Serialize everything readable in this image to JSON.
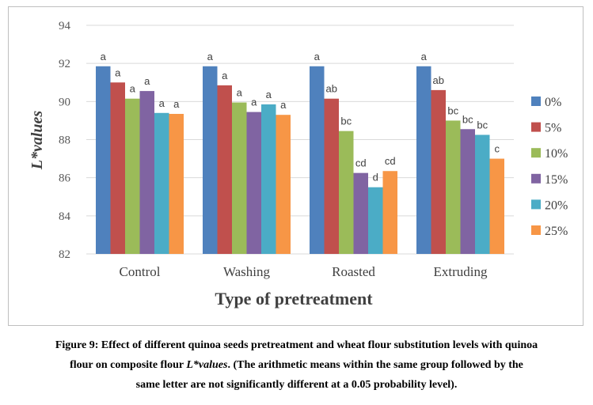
{
  "chart_data": {
    "type": "bar",
    "categories": [
      "Control",
      "Washing",
      "Roasted",
      "Extruding"
    ],
    "series": [
      {
        "name": "0%",
        "color": "#4F81BD",
        "values": [
          91.85,
          91.85,
          91.85,
          91.85
        ],
        "labels": [
          "a",
          "a",
          "a",
          "a"
        ]
      },
      {
        "name": "5%",
        "color": "#C0504D",
        "values": [
          91.0,
          90.85,
          90.15,
          90.6
        ],
        "labels": [
          "a",
          "a",
          "ab",
          "ab"
        ]
      },
      {
        "name": "10%",
        "color": "#9BBB59",
        "values": [
          90.15,
          89.95,
          88.45,
          89.0
        ],
        "labels": [
          "a",
          "a",
          "bc",
          "bc"
        ]
      },
      {
        "name": "15%",
        "color": "#8064A2",
        "values": [
          90.55,
          89.45,
          86.25,
          88.55
        ],
        "labels": [
          "a",
          "a",
          "cd",
          "bc"
        ]
      },
      {
        "name": "20%",
        "color": "#4BACC6",
        "values": [
          89.4,
          89.85,
          85.5,
          88.25
        ],
        "labels": [
          "a",
          "a",
          "d",
          "bc"
        ]
      },
      {
        "name": "25%",
        "color": "#F79646",
        "values": [
          89.35,
          89.3,
          86.35,
          87.0
        ],
        "labels": [
          "a",
          "a",
          "cd",
          "c"
        ]
      }
    ],
    "xlabel": "Type of pretreatment",
    "ylabel": "L*values",
    "ylim": [
      82,
      94
    ],
    "yticks": [
      82,
      84,
      86,
      88,
      90,
      92,
      94
    ],
    "grid": true,
    "legend": "right"
  },
  "caption": {
    "line1": "Figure 9: Effect of different quinoa seeds pretreatment and wheat flour substitution levels with quinoa",
    "line2_pre": "flour on composite flour ",
    "line2_it": "L*values",
    "line2_post": ". (The arithmetic means within the same group followed by the",
    "line3": "same letter are not significantly different at a 0.05 probability level)."
  }
}
